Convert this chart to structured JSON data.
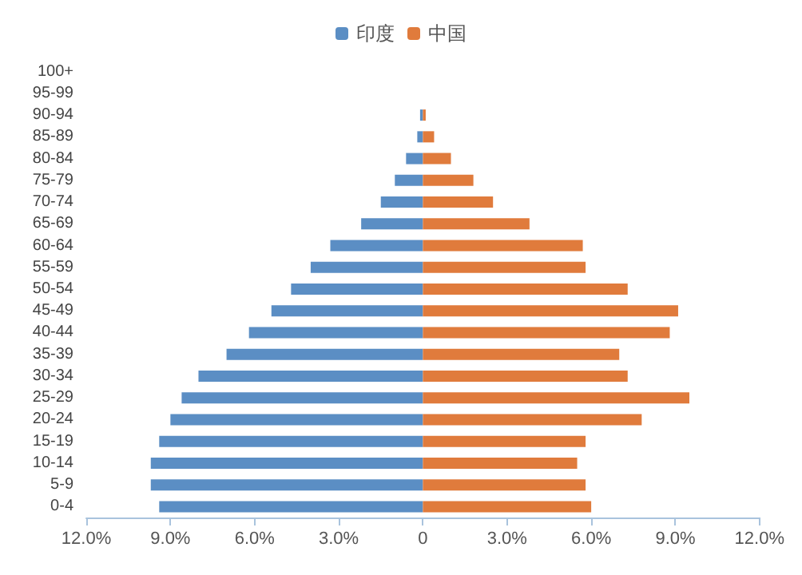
{
  "chart_data": {
    "type": "bar",
    "orientation": "horizontal",
    "categories": [
      "100+",
      "95-99",
      "90-94",
      "85-89",
      "80-84",
      "75-79",
      "70-74",
      "65-69",
      "60-64",
      "55-59",
      "50-54",
      "45-49",
      "40-44",
      "35-39",
      "30-34",
      "25-29",
      "20-24",
      "15-19",
      "10-14",
      "5-9",
      "0-4"
    ],
    "series": [
      {
        "name": "印度",
        "color": "#5b8ec4",
        "values": [
          0,
          0,
          -0.1,
          -0.2,
          -0.6,
          -1.0,
          -1.5,
          -2.2,
          -3.3,
          -4.0,
          -4.7,
          -5.4,
          -6.2,
          -7.0,
          -8.0,
          -8.6,
          -9.0,
          -9.4,
          -9.7,
          -9.7,
          -9.4
        ]
      },
      {
        "name": "中国",
        "color": "#e07b3c",
        "values": [
          0,
          0,
          0.1,
          0.4,
          1.0,
          1.8,
          2.5,
          3.8,
          5.7,
          5.8,
          7.3,
          9.1,
          8.8,
          7.0,
          7.3,
          9.5,
          7.8,
          5.8,
          5.5,
          5.8,
          6.0
        ]
      }
    ],
    "xlim": [
      -12,
      12
    ],
    "xticks": [
      {
        "value": -12,
        "label": "12.0%"
      },
      {
        "value": -9,
        "label": "9.0%"
      },
      {
        "value": -6,
        "label": "6.0%"
      },
      {
        "value": -3,
        "label": "3.0%"
      },
      0,
      {
        "value": 3,
        "label": "3.0%"
      },
      {
        "value": 6,
        "label": "6.0%"
      },
      {
        "value": 9,
        "label": "9.0%"
      },
      {
        "value": 12,
        "label": "12.0%"
      }
    ],
    "grid": false,
    "legend": "top",
    "stacked": true
  }
}
